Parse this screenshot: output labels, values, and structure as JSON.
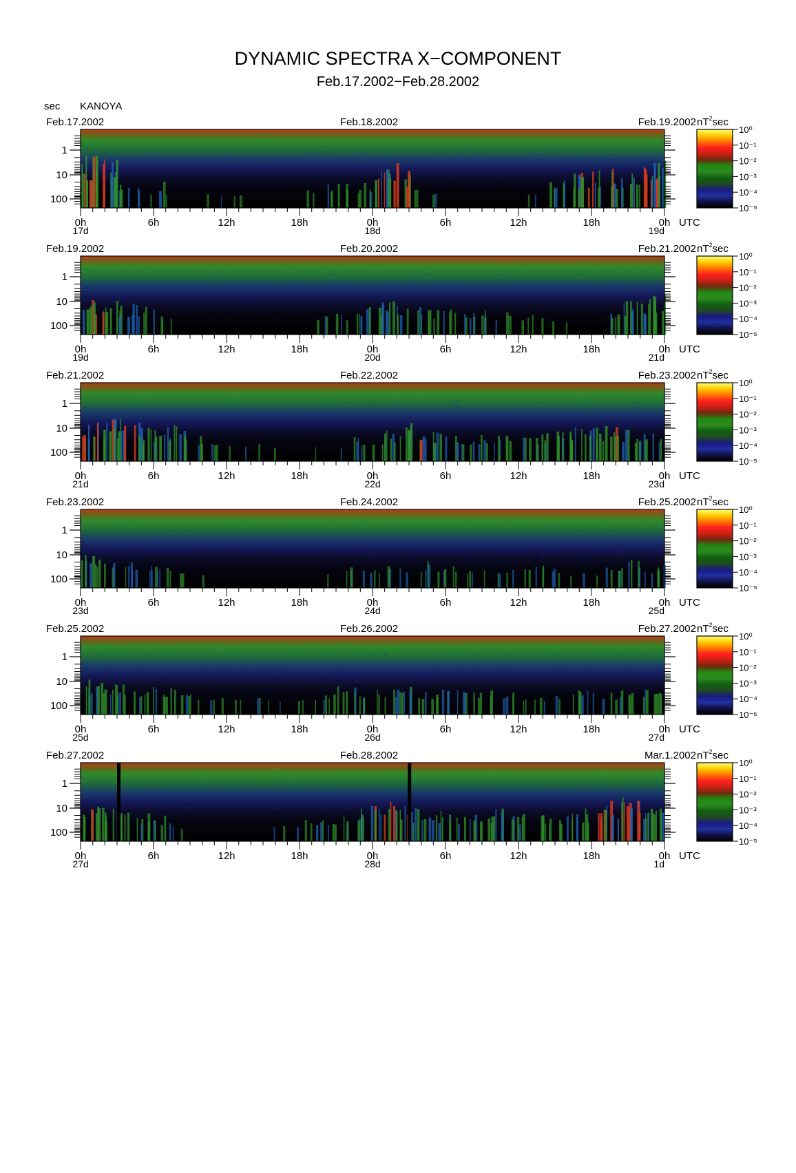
{
  "header": {
    "title": "DYNAMIC SPECTRA X−COMPONENT",
    "subtitle": "Feb.17.2002−Feb.28.2002",
    "y_unit": "sec",
    "station": "KANOYA"
  },
  "chart_data": {
    "type": "heatmap",
    "title": "DYNAMIC SPECTRA X−COMPONENT",
    "subtitle": "Feb.17.2002−Feb.28.2002",
    "ylabel": "sec",
    "yscale": "log",
    "yticks": [
      "1",
      "10",
      "100"
    ],
    "xticks": [
      "0h",
      "6h",
      "12h",
      "18h",
      "0h",
      "6h",
      "12h",
      "18h",
      "0h"
    ],
    "xunit": "UTC",
    "colorbar": {
      "label": "nT²sec",
      "ticks": [
        "10⁰",
        "10⁻¹",
        "10⁻²",
        "10⁻³",
        "10⁻⁴",
        "10⁻⁵"
      ],
      "colors": [
        "#ffff80",
        "#ffcc00",
        "#ff7700",
        "#ff2020",
        "#cc2010",
        "#702810",
        "#208a10",
        "#2d8a20",
        "#106010",
        "#204a20",
        "#1a1a80",
        "#2030a0",
        "#101040",
        "#000000"
      ]
    },
    "panels": [
      {
        "date_left": "Feb.17.2002",
        "date_mid": "Feb.18.2002",
        "date_right": "Feb.19.2002",
        "day_start": "17d",
        "day_mid": "18d",
        "day_end": "19d",
        "activity": [
          0.9,
          0.85,
          0.75,
          0.4,
          0.2,
          0.15,
          0.35,
          0.1,
          0.05,
          0.05,
          0.1,
          0.1,
          0.1,
          0.1,
          0.05,
          0.05,
          0.05,
          0.05,
          0.15,
          0.1,
          0.3,
          0.3,
          0.2,
          0.3,
          0.6,
          0.7,
          0.55,
          0.25,
          0.15,
          0.1,
          0.05,
          0.05,
          0.05,
          0.05,
          0.05,
          0.05,
          0.1,
          0.1,
          0.35,
          0.45,
          0.5,
          0.55,
          0.55,
          0.6,
          0.45,
          0.5,
          0.7,
          0.8
        ]
      },
      {
        "date_left": "Feb.19.2002",
        "date_mid": "Feb.20.2002",
        "date_right": "Feb.21.2002",
        "day_start": "19d",
        "day_mid": "20d",
        "day_end": "21d",
        "activity": [
          0.6,
          0.55,
          0.5,
          0.4,
          0.4,
          0.35,
          0.25,
          0.15,
          0.05,
          0.05,
          0.05,
          0.05,
          0.05,
          0.05,
          0.05,
          0.05,
          0.05,
          0.05,
          0.05,
          0.15,
          0.35,
          0.2,
          0.35,
          0.4,
          0.5,
          0.5,
          0.35,
          0.35,
          0.35,
          0.3,
          0.3,
          0.35,
          0.3,
          0.3,
          0.25,
          0.2,
          0.2,
          0.2,
          0.1,
          0.1,
          0.05,
          0.05,
          0.05,
          0.35,
          0.45,
          0.45,
          0.5,
          0.6
        ]
      },
      {
        "date_left": "Feb.21.2002",
        "date_mid": "Feb.22.2002",
        "date_right": "Feb.23.2002",
        "day_start": "21d",
        "day_mid": "22d",
        "day_end": "23d",
        "activity": [
          0.6,
          0.65,
          0.7,
          0.65,
          0.55,
          0.45,
          0.5,
          0.5,
          0.4,
          0.3,
          0.2,
          0.15,
          0.1,
          0.1,
          0.15,
          0.1,
          0.05,
          0.05,
          0.05,
          0.1,
          0.05,
          0.15,
          0.3,
          0.3,
          0.35,
          0.4,
          0.5,
          0.55,
          0.45,
          0.4,
          0.35,
          0.3,
          0.35,
          0.3,
          0.3,
          0.25,
          0.3,
          0.35,
          0.35,
          0.4,
          0.5,
          0.45,
          0.5,
          0.55,
          0.45,
          0.4,
          0.35,
          0.35
        ]
      },
      {
        "date_left": "Feb.23.2002",
        "date_mid": "Feb.24.2002",
        "date_right": "Feb.25.2002",
        "day_start": "23d",
        "day_mid": "24d",
        "day_end": "25d",
        "activity": [
          0.5,
          0.4,
          0.3,
          0.25,
          0.3,
          0.35,
          0.3,
          0.2,
          0.2,
          0.1,
          0.05,
          0.05,
          0.05,
          0.05,
          0.05,
          0.05,
          0.05,
          0.05,
          0.05,
          0.05,
          0.1,
          0.15,
          0.25,
          0.2,
          0.2,
          0.25,
          0.2,
          0.15,
          0.35,
          0.3,
          0.25,
          0.2,
          0.15,
          0.15,
          0.2,
          0.2,
          0.25,
          0.3,
          0.2,
          0.15,
          0.1,
          0.1,
          0.1,
          0.2,
          0.35,
          0.4,
          0.2,
          0.35
        ]
      },
      {
        "date_left": "Feb.25.2002",
        "date_mid": "Feb.26.2002",
        "date_right": "Feb.27.2002",
        "day_start": "25d",
        "day_mid": "26d",
        "day_end": "27d",
        "activity": [
          0.5,
          0.5,
          0.45,
          0.4,
          0.35,
          0.35,
          0.3,
          0.35,
          0.3,
          0.2,
          0.2,
          0.15,
          0.1,
          0.1,
          0.2,
          0.15,
          0.1,
          0.1,
          0.1,
          0.2,
          0.3,
          0.35,
          0.35,
          0.3,
          0.35,
          0.3,
          0.3,
          0.35,
          0.3,
          0.3,
          0.35,
          0.3,
          0.3,
          0.3,
          0.2,
          0.25,
          0.2,
          0.2,
          0.15,
          0.2,
          0.35,
          0.3,
          0.25,
          0.25,
          0.3,
          0.35,
          0.35,
          0.4
        ]
      },
      {
        "date_left": "Feb.27.2002",
        "date_mid": "Feb.28.2002",
        "date_right": "Mar.1.2002",
        "day_start": "27d",
        "day_mid": "28d",
        "day_end": "1d",
        "activity": [
          0.55,
          0.5,
          0.45,
          0.4,
          0.35,
          0.35,
          0.3,
          0.2,
          0.1,
          0.05,
          0.05,
          0.05,
          0.05,
          0.05,
          0.05,
          0.1,
          0.1,
          0.15,
          0.25,
          0.3,
          0.3,
          0.3,
          0.35,
          0.5,
          0.55,
          0.6,
          0.55,
          0.45,
          0.4,
          0.45,
          0.45,
          0.35,
          0.4,
          0.4,
          0.45,
          0.3,
          0.35,
          0.35,
          0.3,
          0.35,
          0.4,
          0.45,
          0.55,
          0.6,
          0.65,
          0.7,
          0.65,
          0.5
        ],
        "gaps_hour": [
          3.0,
          26.9
        ]
      }
    ]
  }
}
